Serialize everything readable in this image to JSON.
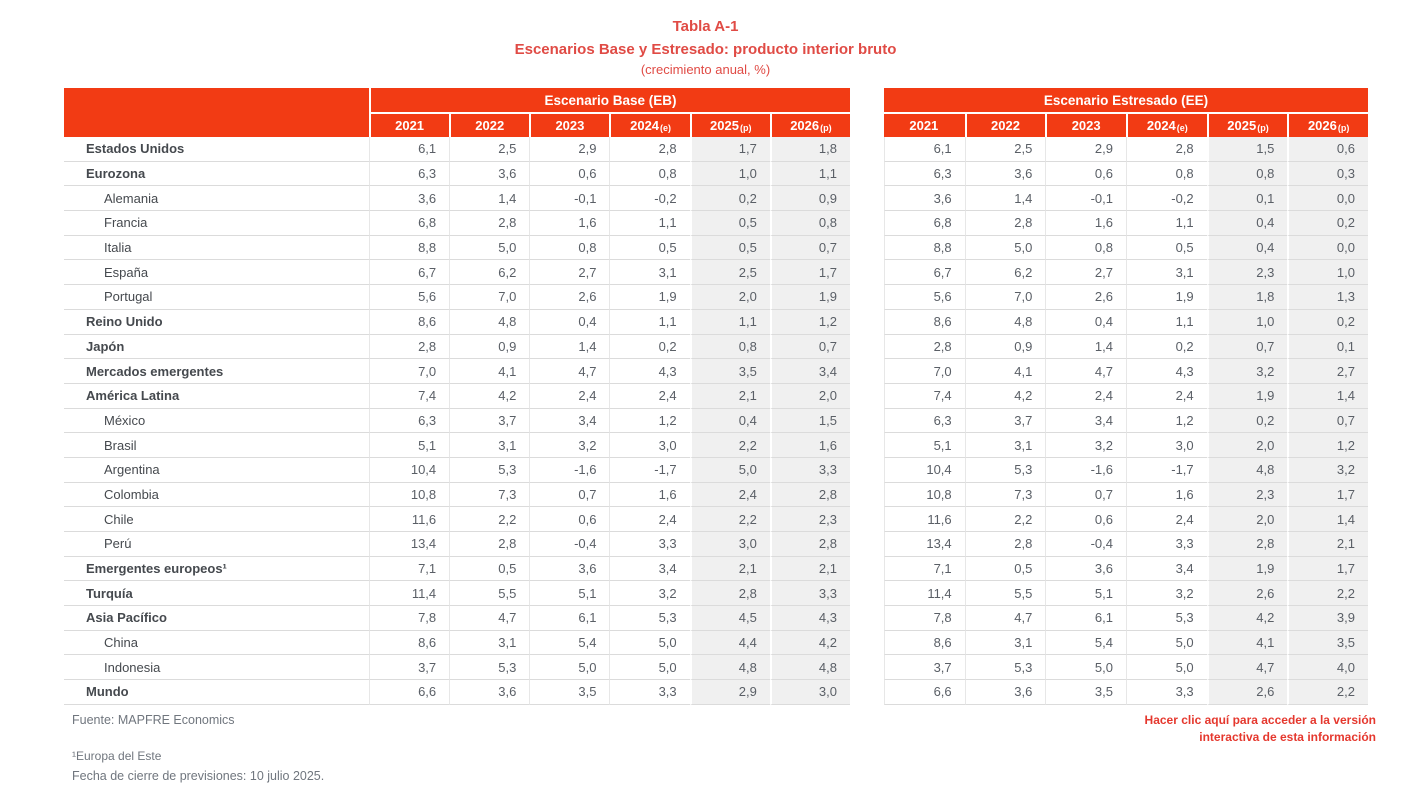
{
  "header": {
    "table_number": "Tabla A-1",
    "title": "Escenarios Base y Estresado: producto interior bruto",
    "subtitle": "(crecimiento anual, %)"
  },
  "colors": {
    "header_red": "#F23B14",
    "title_red": "#E04B45",
    "link_red": "#E5382E",
    "shaded_column": "#F0F0F0"
  },
  "table": {
    "scenarios": [
      {
        "name": "Escenario Base (EB)"
      },
      {
        "name": "Escenario Estresado (EE)"
      }
    ],
    "years": [
      {
        "label": "2021",
        "suffix": ""
      },
      {
        "label": "2022",
        "suffix": ""
      },
      {
        "label": "2023",
        "suffix": ""
      },
      {
        "label": "2024",
        "suffix": "(e)"
      },
      {
        "label": "2025",
        "suffix": "(p)"
      },
      {
        "label": "2026",
        "suffix": "(p)"
      }
    ],
    "rows": [
      {
        "label": "Estados Unidos",
        "bold": true,
        "indent": false,
        "eb": [
          "6,1",
          "2,5",
          "2,9",
          "2,8",
          "1,7",
          "1,8"
        ],
        "ee": [
          "6,1",
          "2,5",
          "2,9",
          "2,8",
          "1,5",
          "0,6"
        ]
      },
      {
        "label": "Eurozona",
        "bold": true,
        "indent": false,
        "eb": [
          "6,3",
          "3,6",
          "0,6",
          "0,8",
          "1,0",
          "1,1"
        ],
        "ee": [
          "6,3",
          "3,6",
          "0,6",
          "0,8",
          "0,8",
          "0,3"
        ]
      },
      {
        "label": "Alemania",
        "bold": false,
        "indent": true,
        "eb": [
          "3,6",
          "1,4",
          "-0,1",
          "-0,2",
          "0,2",
          "0,9"
        ],
        "ee": [
          "3,6",
          "1,4",
          "-0,1",
          "-0,2",
          "0,1",
          "0,0"
        ]
      },
      {
        "label": "Francia",
        "bold": false,
        "indent": true,
        "eb": [
          "6,8",
          "2,8",
          "1,6",
          "1,1",
          "0,5",
          "0,8"
        ],
        "ee": [
          "6,8",
          "2,8",
          "1,6",
          "1,1",
          "0,4",
          "0,2"
        ]
      },
      {
        "label": "Italia",
        "bold": false,
        "indent": true,
        "eb": [
          "8,8",
          "5,0",
          "0,8",
          "0,5",
          "0,5",
          "0,7"
        ],
        "ee": [
          "8,8",
          "5,0",
          "0,8",
          "0,5",
          "0,4",
          "0,0"
        ]
      },
      {
        "label": "España",
        "bold": false,
        "indent": true,
        "eb": [
          "6,7",
          "6,2",
          "2,7",
          "3,1",
          "2,5",
          "1,7"
        ],
        "ee": [
          "6,7",
          "6,2",
          "2,7",
          "3,1",
          "2,3",
          "1,0"
        ]
      },
      {
        "label": "Portugal",
        "bold": false,
        "indent": true,
        "eb": [
          "5,6",
          "7,0",
          "2,6",
          "1,9",
          "2,0",
          "1,9"
        ],
        "ee": [
          "5,6",
          "7,0",
          "2,6",
          "1,9",
          "1,8",
          "1,3"
        ]
      },
      {
        "label": "Reino Unido",
        "bold": true,
        "indent": false,
        "eb": [
          "8,6",
          "4,8",
          "0,4",
          "1,1",
          "1,1",
          "1,2"
        ],
        "ee": [
          "8,6",
          "4,8",
          "0,4",
          "1,1",
          "1,0",
          "0,2"
        ]
      },
      {
        "label": "Japón",
        "bold": true,
        "indent": false,
        "eb": [
          "2,8",
          "0,9",
          "1,4",
          "0,2",
          "0,8",
          "0,7"
        ],
        "ee": [
          "2,8",
          "0,9",
          "1,4",
          "0,2",
          "0,7",
          "0,1"
        ]
      },
      {
        "label": "Mercados emergentes",
        "bold": true,
        "indent": false,
        "eb": [
          "7,0",
          "4,1",
          "4,7",
          "4,3",
          "3,5",
          "3,4"
        ],
        "ee": [
          "7,0",
          "4,1",
          "4,7",
          "4,3",
          "3,2",
          "2,7"
        ]
      },
      {
        "label": "América Latina",
        "bold": true,
        "indent": false,
        "eb": [
          "7,4",
          "4,2",
          "2,4",
          "2,4",
          "2,1",
          "2,0"
        ],
        "ee": [
          "7,4",
          "4,2",
          "2,4",
          "2,4",
          "1,9",
          "1,4"
        ]
      },
      {
        "label": "México",
        "bold": false,
        "indent": true,
        "eb": [
          "6,3",
          "3,7",
          "3,4",
          "1,2",
          "0,4",
          "1,5"
        ],
        "ee": [
          "6,3",
          "3,7",
          "3,4",
          "1,2",
          "0,2",
          "0,7"
        ]
      },
      {
        "label": "Brasil",
        "bold": false,
        "indent": true,
        "eb": [
          "5,1",
          "3,1",
          "3,2",
          "3,0",
          "2,2",
          "1,6"
        ],
        "ee": [
          "5,1",
          "3,1",
          "3,2",
          "3,0",
          "2,0",
          "1,2"
        ]
      },
      {
        "label": "Argentina",
        "bold": false,
        "indent": true,
        "eb": [
          "10,4",
          "5,3",
          "-1,6",
          "-1,7",
          "5,0",
          "3,3"
        ],
        "ee": [
          "10,4",
          "5,3",
          "-1,6",
          "-1,7",
          "4,8",
          "3,2"
        ]
      },
      {
        "label": "Colombia",
        "bold": false,
        "indent": true,
        "eb": [
          "10,8",
          "7,3",
          "0,7",
          "1,6",
          "2,4",
          "2,8"
        ],
        "ee": [
          "10,8",
          "7,3",
          "0,7",
          "1,6",
          "2,3",
          "1,7"
        ]
      },
      {
        "label": "Chile",
        "bold": false,
        "indent": true,
        "eb": [
          "11,6",
          "2,2",
          "0,6",
          "2,4",
          "2,2",
          "2,3"
        ],
        "ee": [
          "11,6",
          "2,2",
          "0,6",
          "2,4",
          "2,0",
          "1,4"
        ]
      },
      {
        "label": "Perú",
        "bold": false,
        "indent": true,
        "eb": [
          "13,4",
          "2,8",
          "-0,4",
          "3,3",
          "3,0",
          "2,8"
        ],
        "ee": [
          "13,4",
          "2,8",
          "-0,4",
          "3,3",
          "2,8",
          "2,1"
        ]
      },
      {
        "label": "Emergentes europeos¹",
        "bold": true,
        "indent": false,
        "eb": [
          "7,1",
          "0,5",
          "3,6",
          "3,4",
          "2,1",
          "2,1"
        ],
        "ee": [
          "7,1",
          "0,5",
          "3,6",
          "3,4",
          "1,9",
          "1,7"
        ]
      },
      {
        "label": "Turquía",
        "bold": true,
        "indent": false,
        "eb": [
          "11,4",
          "5,5",
          "5,1",
          "3,2",
          "2,8",
          "3,3"
        ],
        "ee": [
          "11,4",
          "5,5",
          "5,1",
          "3,2",
          "2,6",
          "2,2"
        ]
      },
      {
        "label": "Asia Pacífico",
        "bold": true,
        "indent": false,
        "eb": [
          "7,8",
          "4,7",
          "6,1",
          "5,3",
          "4,5",
          "4,3"
        ],
        "ee": [
          "7,8",
          "4,7",
          "6,1",
          "5,3",
          "4,2",
          "3,9"
        ]
      },
      {
        "label": "China",
        "bold": false,
        "indent": true,
        "eb": [
          "8,6",
          "3,1",
          "5,4",
          "5,0",
          "4,4",
          "4,2"
        ],
        "ee": [
          "8,6",
          "3,1",
          "5,4",
          "5,0",
          "4,1",
          "3,5"
        ]
      },
      {
        "label": "Indonesia",
        "bold": false,
        "indent": true,
        "eb": [
          "3,7",
          "5,3",
          "5,0",
          "5,0",
          "4,8",
          "4,8"
        ],
        "ee": [
          "3,7",
          "5,3",
          "5,0",
          "5,0",
          "4,7",
          "4,0"
        ]
      },
      {
        "label": "Mundo",
        "bold": true,
        "indent": false,
        "eb": [
          "6,6",
          "3,6",
          "3,5",
          "3,3",
          "2,9",
          "3,0"
        ],
        "ee": [
          "6,6",
          "3,6",
          "3,5",
          "3,3",
          "2,6",
          "2,2"
        ]
      }
    ]
  },
  "footer": {
    "source": "Fuente: MAPFRE Economics",
    "note1": "¹Europa del Este",
    "note2": "Fecha de cierre de previsiones: 10 julio 2025.",
    "link": "Hacer clic aquí para acceder a la versión interactiva de esta información"
  }
}
